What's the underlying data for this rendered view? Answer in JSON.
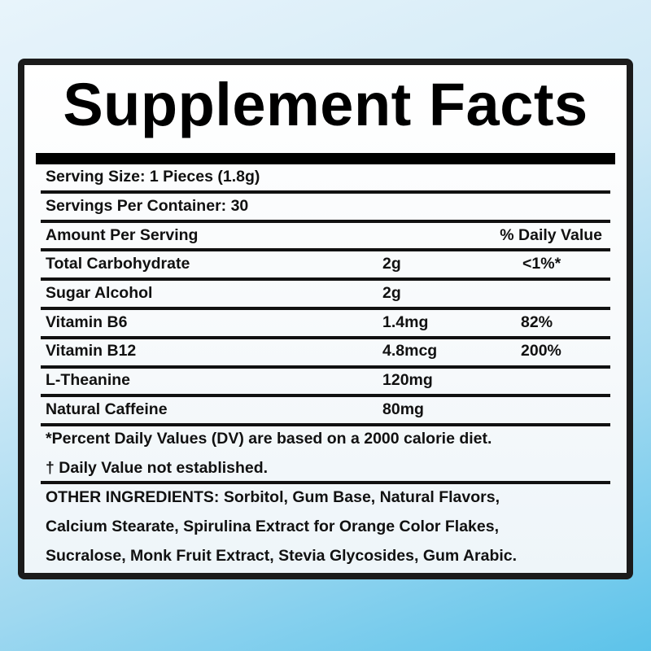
{
  "title": "Supplement Facts",
  "serving_size": "Serving Size:  1 Pieces (1.8g)",
  "servings_per_container": "Servings Per Container: 30",
  "header": {
    "amount": "Amount Per Serving",
    "dv": "% Daily Value"
  },
  "nutrients": [
    {
      "name": "Total Carbohydrate",
      "amount": "2g",
      "dv": "<1%*"
    },
    {
      "name": "Sugar Alcohol",
      "amount": "2g",
      "dv": ""
    },
    {
      "name": "Vitamin B6",
      "amount": "1.4mg",
      "dv": "82%"
    },
    {
      "name": "Vitamin B12",
      "amount": "4.8mcg",
      "dv": "200%"
    },
    {
      "name": "L-Theanine",
      "amount": "120mg",
      "dv": ""
    },
    {
      "name": "Natural Caffeine",
      "amount": "80mg",
      "dv": ""
    }
  ],
  "footnotes": [
    "*Percent Daily Values (DV) are based on a 2000 calorie diet.",
    "† Daily Value not established."
  ],
  "other_ingredients": [
    "OTHER INGREDIENTS: Sorbitol, Gum Base, Natural Flavors,",
    "Calcium Stearate, Spirulina Extract for Orange Color Flakes,",
    "Sucralose, Monk Fruit Extract, Stevia Glycosides, Gum Arabic."
  ]
}
